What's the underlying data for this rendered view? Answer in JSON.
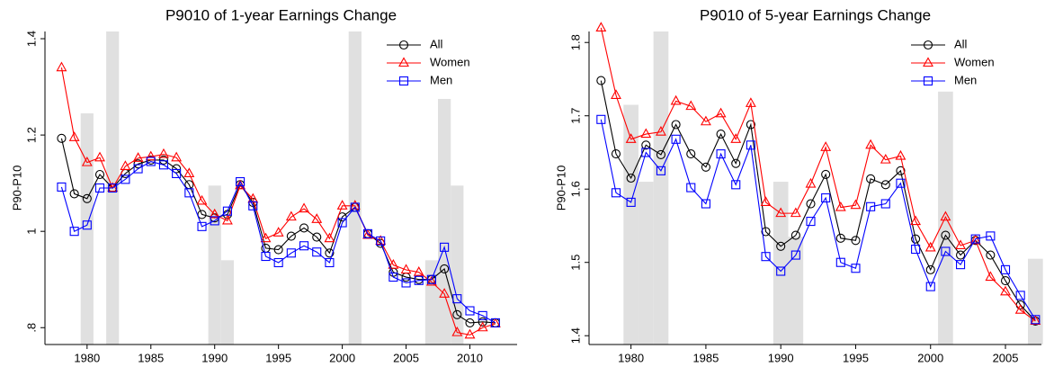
{
  "chart_data": [
    {
      "type": "line",
      "title": "P9010 of 1-year Earnings Change",
      "y_label": "P90-P10",
      "legend": "upper right",
      "x": [
        1978,
        1979,
        1980,
        1981,
        1982,
        1983,
        1984,
        1985,
        1986,
        1987,
        1988,
        1989,
        1990,
        1991,
        1992,
        1993,
        1994,
        1995,
        1996,
        1997,
        1998,
        1999,
        2000,
        2001,
        2002,
        2003,
        2004,
        2005,
        2006,
        2007,
        2008,
        2009,
        2010,
        2011,
        2012
      ],
      "series": [
        {
          "name": "All",
          "color": "#000000",
          "marker": "circle",
          "values": [
            1.193,
            1.078,
            1.068,
            1.118,
            1.09,
            1.12,
            1.14,
            1.148,
            1.148,
            1.13,
            1.097,
            1.035,
            1.028,
            1.035,
            1.097,
            1.06,
            0.965,
            0.962,
            0.99,
            1.007,
            0.988,
            0.955,
            1.03,
            1.05,
            0.995,
            0.975,
            0.915,
            0.905,
            0.9,
            0.9,
            0.922,
            0.827,
            0.81,
            0.812,
            0.81
          ]
        },
        {
          "name": "Women",
          "color": "#ff0000",
          "marker": "triangle",
          "values": [
            1.34,
            1.195,
            1.143,
            1.153,
            1.09,
            1.135,
            1.152,
            1.155,
            1.16,
            1.153,
            1.12,
            1.063,
            1.035,
            1.022,
            1.095,
            1.067,
            0.985,
            0.997,
            1.03,
            1.047,
            1.025,
            0.985,
            1.053,
            1.053,
            0.992,
            0.98,
            0.93,
            0.92,
            0.915,
            0.895,
            0.87,
            0.79,
            0.785,
            0.8,
            0.808
          ]
        },
        {
          "name": "Men",
          "color": "#0000ff",
          "marker": "square",
          "values": [
            1.092,
            1.0,
            1.013,
            1.09,
            1.09,
            1.108,
            1.13,
            1.145,
            1.138,
            1.12,
            1.08,
            1.01,
            1.022,
            1.042,
            1.103,
            1.053,
            0.948,
            0.935,
            0.955,
            0.97,
            0.957,
            0.935,
            1.018,
            1.05,
            0.995,
            0.98,
            0.905,
            0.893,
            0.898,
            0.9,
            0.967,
            0.86,
            0.835,
            0.825,
            0.81
          ]
        }
      ],
      "shading": {
        "color": "#e0e0e0",
        "x": [
          1980,
          1982,
          1990,
          1991,
          2001,
          2007,
          2008,
          2009
        ],
        "top": [
          1.245,
          1.415,
          1.095,
          0.94,
          1.415,
          0.94,
          1.275,
          1.095
        ]
      },
      "xlim": [
        1976.7,
        2013.7
      ],
      "ylim": [
        0.765,
        1.415
      ],
      "xticks": [
        1980,
        1985,
        1990,
        1995,
        2000,
        2005,
        2010
      ],
      "yticks": [
        {
          "value": 0.8,
          "label": ".8"
        },
        1,
        1.2,
        1.4
      ]
    },
    {
      "type": "line",
      "title": "P9010 of 5-year Earnings Change",
      "y_label": "P90-P10",
      "legend": "upper right",
      "x": [
        1978,
        1979,
        1980,
        1981,
        1982,
        1983,
        1984,
        1985,
        1986,
        1987,
        1988,
        1989,
        1990,
        1991,
        1992,
        1993,
        1994,
        1995,
        1996,
        1997,
        1998,
        1999,
        2000,
        2001,
        2002,
        2003,
        2004,
        2005,
        2006,
        2007
      ],
      "series": [
        {
          "name": "All",
          "color": "#000000",
          "marker": "circle",
          "values": [
            1.748,
            1.648,
            1.615,
            1.66,
            1.647,
            1.688,
            1.648,
            1.63,
            1.675,
            1.635,
            1.688,
            1.542,
            1.522,
            1.537,
            1.58,
            1.62,
            1.533,
            1.53,
            1.614,
            1.606,
            1.625,
            1.532,
            1.49,
            1.537,
            1.51,
            1.53,
            1.51,
            1.475,
            1.442,
            1.42
          ]
        },
        {
          "name": "Women",
          "color": "#ff0000",
          "marker": "triangle",
          "values": [
            1.82,
            1.728,
            1.668,
            1.675,
            1.678,
            1.72,
            1.713,
            1.692,
            1.703,
            1.668,
            1.717,
            1.582,
            1.567,
            1.567,
            1.607,
            1.657,
            1.575,
            1.578,
            1.66,
            1.64,
            1.645,
            1.556,
            1.52,
            1.562,
            1.523,
            1.53,
            1.48,
            1.46,
            1.435,
            1.42
          ]
        },
        {
          "name": "Men",
          "color": "#0000ff",
          "marker": "square",
          "values": [
            1.695,
            1.595,
            1.582,
            1.65,
            1.625,
            1.668,
            1.602,
            1.58,
            1.648,
            1.606,
            1.66,
            1.508,
            1.488,
            1.51,
            1.556,
            1.588,
            1.5,
            1.492,
            1.576,
            1.58,
            1.608,
            1.518,
            1.467,
            1.515,
            1.497,
            1.532,
            1.536,
            1.49,
            1.455,
            1.422
          ]
        }
      ],
      "shading": {
        "color": "#e0e0e0",
        "x": [
          1980,
          1981,
          1982,
          1990,
          1991,
          2001,
          2007
        ],
        "top": [
          1.715,
          1.61,
          1.815,
          1.61,
          1.535,
          1.733,
          1.505
        ]
      },
      "xlim": [
        1977.2,
        2007.4
      ],
      "ylim": [
        1.388,
        1.815
      ],
      "xticks": [
        1980,
        1985,
        1990,
        1995,
        2000,
        2005
      ],
      "yticks": [
        1.4,
        1.5,
        1.6,
        1.7,
        1.8
      ]
    }
  ]
}
